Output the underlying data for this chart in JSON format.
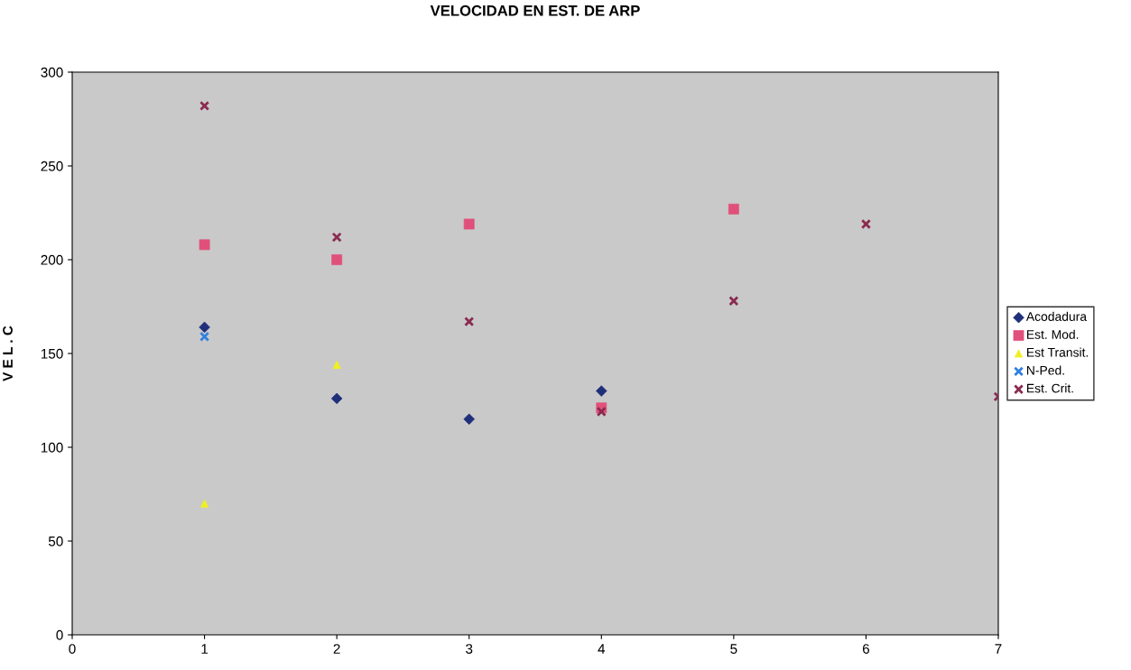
{
  "chart_data": {
    "type": "scatter",
    "title": "VELOCIDAD EN EST. DE ARP",
    "ylabel": "V E L . C",
    "xlim": [
      0,
      7
    ],
    "xticks": [
      0,
      1,
      2,
      3,
      4,
      5,
      6,
      7
    ],
    "ylim": [
      0,
      300
    ],
    "yticks": [
      0,
      50,
      100,
      150,
      200,
      250,
      300
    ],
    "grid": false,
    "legend": "right",
    "series": [
      {
        "name": "Acodadura",
        "color": "#1f2f7a",
        "marker": "diamond",
        "x": [
          1,
          2,
          3,
          4
        ],
        "values": [
          164,
          126,
          115,
          130
        ]
      },
      {
        "name": "Est. Mod.",
        "color": "#e0507a",
        "marker": "square",
        "x": [
          1,
          2,
          3,
          4,
          5
        ],
        "values": [
          208,
          200,
          219,
          121,
          227
        ]
      },
      {
        "name": "Est Transit.",
        "color": "#f0f020",
        "marker": "triangle",
        "x": [
          1,
          2
        ],
        "values": [
          70,
          144
        ]
      },
      {
        "name": "N-Ped.",
        "color": "#3080e0",
        "marker": "cross",
        "x": [
          1
        ],
        "values": [
          159
        ]
      },
      {
        "name": "Est. Crit.",
        "color": "#8a2a50",
        "marker": "cross",
        "x": [
          1,
          2,
          3,
          4,
          5,
          6,
          7
        ],
        "values": [
          282,
          212,
          167,
          119,
          178,
          219,
          127
        ]
      }
    ]
  }
}
